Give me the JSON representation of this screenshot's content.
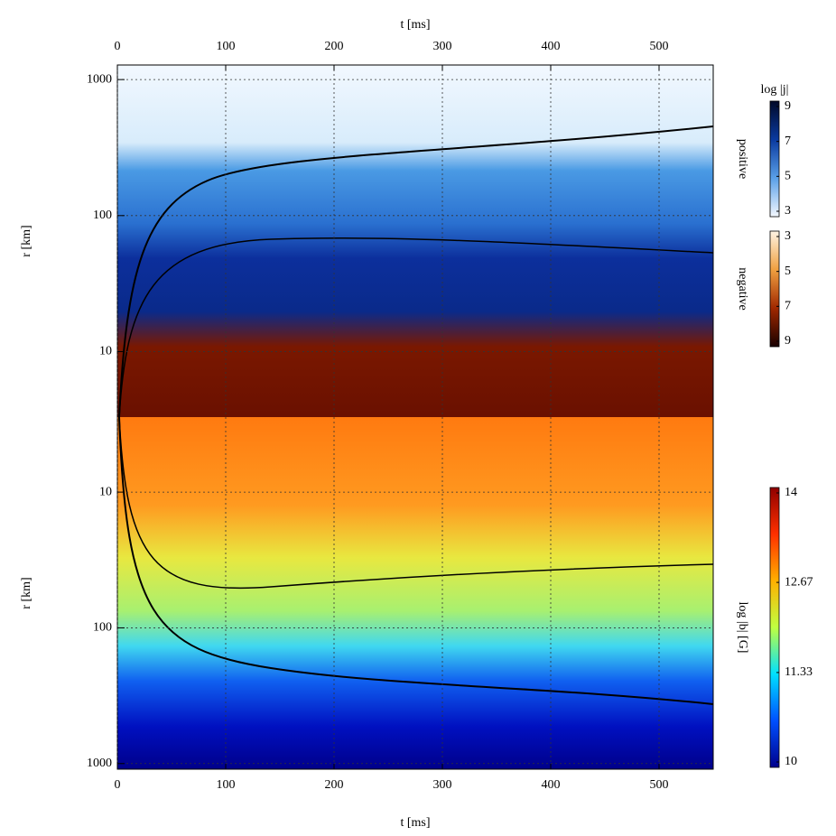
{
  "chart_data": [
    {
      "type": "heatmap",
      "xlabel": "t [ms]",
      "ylabel": "r [km]",
      "x_axis": "top",
      "xlim": [
        0,
        550
      ],
      "xticks": [
        0,
        100,
        200,
        300,
        400,
        500
      ],
      "ylim": [
        3.3,
        1280
      ],
      "yticks": [
        10,
        100,
        1000
      ],
      "yscale": "log",
      "yreverse": false,
      "grid": true,
      "colorbar_title": "log |j|",
      "colorbars": [
        {
          "label": "positive",
          "lim": [
            3,
            9
          ],
          "ticks": [
            3,
            5,
            7,
            9
          ],
          "reverse": false,
          "colors": [
            "#f4f8ff",
            "#5aa0e8",
            "#0a3aa0",
            "#000828"
          ]
        },
        {
          "label": "negative",
          "lim": [
            3,
            9
          ],
          "ticks": [
            3,
            5,
            7,
            9
          ],
          "reverse": true,
          "colors": [
            "#fff4e4",
            "#f0a040",
            "#a02800",
            "#180000"
          ]
        }
      ]
    },
    {
      "type": "heatmap",
      "xlabel": "t [ms]",
      "ylabel": "r [km]",
      "x_axis": "bottom",
      "xlim": [
        0,
        550
      ],
      "xticks": [
        0,
        100,
        200,
        300,
        400,
        500
      ],
      "ylim": [
        2.8,
        1100
      ],
      "yticks": [
        10,
        100,
        1000
      ],
      "yscale": "log",
      "yreverse": true,
      "grid": true,
      "colorbars": [
        {
          "label": "log |b| [G]",
          "lim": [
            10,
            14
          ],
          "ticks": [
            10,
            11.33,
            12.67,
            14
          ],
          "reverse": false,
          "colors": [
            "#00008c",
            "#0050ff",
            "#00e0ff",
            "#c0ff40",
            "#ffb000",
            "#ff3000",
            "#900000"
          ]
        }
      ]
    }
  ]
}
